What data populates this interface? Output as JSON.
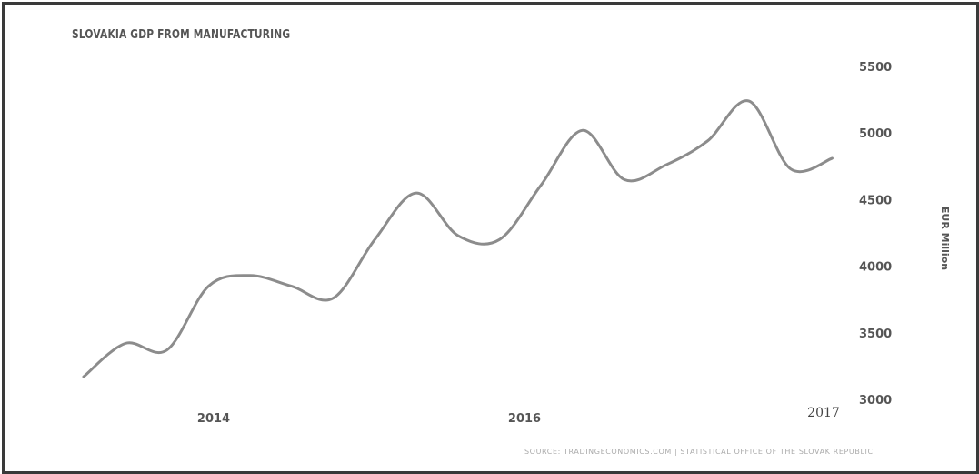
{
  "chart_data": {
    "type": "line",
    "title": "SLOVAKIA GDP FROM MANUFACTURING",
    "ylabel": "EUR Million",
    "xlabel": "",
    "ylim": [
      3000,
      5500
    ],
    "yticks": [
      "5500",
      "5000",
      "4500",
      "4000",
      "3500",
      "3000"
    ],
    "xticks": [
      "2014",
      "2016",
      "2017"
    ],
    "grid": false,
    "series": [
      {
        "color": "#8c8c8c",
        "points": [
          {
            "x": 2013.0,
            "y": 3170
          },
          {
            "x": 2013.25,
            "y": 3420
          },
          {
            "x": 2013.5,
            "y": 3370
          },
          {
            "x": 2013.75,
            "y": 3850
          },
          {
            "x": 2014.0,
            "y": 3930
          },
          {
            "x": 2014.25,
            "y": 3850
          },
          {
            "x": 2014.5,
            "y": 3760
          },
          {
            "x": 2014.75,
            "y": 4200
          },
          {
            "x": 2015.0,
            "y": 4550
          },
          {
            "x": 2015.25,
            "y": 4230
          },
          {
            "x": 2015.5,
            "y": 4200
          },
          {
            "x": 2015.75,
            "y": 4610
          },
          {
            "x": 2016.0,
            "y": 5020
          },
          {
            "x": 2016.25,
            "y": 4650
          },
          {
            "x": 2016.5,
            "y": 4760
          },
          {
            "x": 2016.75,
            "y": 4940
          },
          {
            "x": 2017.0,
            "y": 5240
          },
          {
            "x": 2017.25,
            "y": 4730
          },
          {
            "x": 2017.5,
            "y": 4810
          }
        ]
      }
    ],
    "source": "SOURCE: TRADINGECONOMICS.COM | STATISTICAL OFFICE OF THE SLOVAK REPUBLIC"
  }
}
